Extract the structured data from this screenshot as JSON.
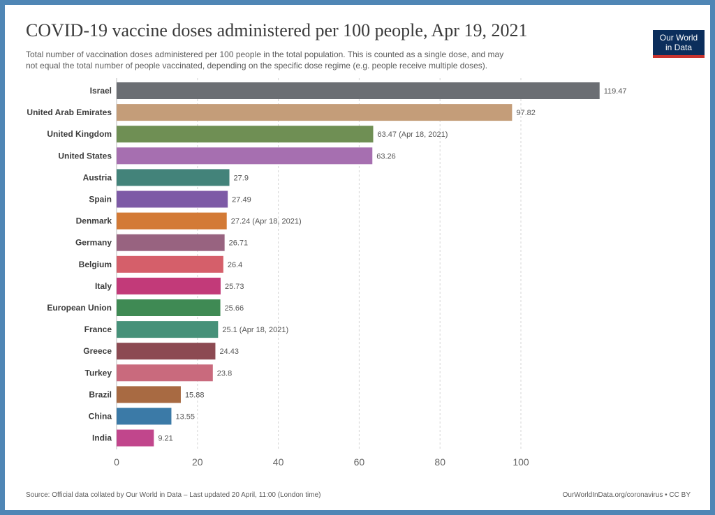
{
  "header": {
    "title": "COVID-19 vaccine doses administered per 100 people, Apr 19, 2021",
    "subtitle_line1": "Total number of vaccination doses administered per 100 people in the total population. This is counted as a single dose, and may",
    "subtitle_line2": "not equal the total number of people vaccinated, depending on the specific dose regime (e.g. people receive multiple doses).",
    "logo_line1": "Our World",
    "logo_line2": "in Data"
  },
  "footer": {
    "source": "Source: Official data collated by Our World in Data – Last updated 20 April, 11:00 (London time)",
    "link": "OurWorldInData.org/coronavirus • CC BY"
  },
  "colors": {
    "frame": "#4f86b5",
    "logo_bg": "#0b2e5c",
    "logo_accent": "#c8332e"
  },
  "chart_data": {
    "type": "bar",
    "orientation": "horizontal",
    "grid": true,
    "xlim": [
      0,
      120
    ],
    "x_ticks": [
      0,
      20,
      40,
      60,
      80,
      100
    ],
    "categories": [
      "Israel",
      "United Arab Emirates",
      "United Kingdom",
      "United States",
      "Austria",
      "Spain",
      "Denmark",
      "Germany",
      "Belgium",
      "Italy",
      "European Union",
      "France",
      "Greece",
      "Turkey",
      "Brazil",
      "China",
      "India"
    ],
    "values": [
      119.47,
      97.82,
      63.47,
      63.26,
      27.9,
      27.49,
      27.24,
      26.71,
      26.4,
      25.73,
      25.66,
      25.1,
      24.43,
      23.8,
      15.88,
      13.55,
      9.21
    ],
    "value_labels": [
      "119.47",
      "97.82",
      "63.47 (Apr 18, 2021)",
      "63.26",
      "27.9",
      "27.49",
      "27.24 (Apr 18, 2021)",
      "26.71",
      "26.4",
      "25.73",
      "25.66",
      "25.1 (Apr 18, 2021)",
      "24.43",
      "23.8",
      "15.88",
      "13.55",
      "9.21"
    ],
    "bar_colors": [
      "#6b6e73",
      "#c49d79",
      "#6f8f54",
      "#a66fb0",
      "#43837a",
      "#7d5aa6",
      "#d37a36",
      "#986380",
      "#d55f6a",
      "#c23a79",
      "#3f8a54",
      "#469179",
      "#8c4a52",
      "#c96a7d",
      "#a86a42",
      "#3b7aa7",
      "#c1468c"
    ]
  }
}
